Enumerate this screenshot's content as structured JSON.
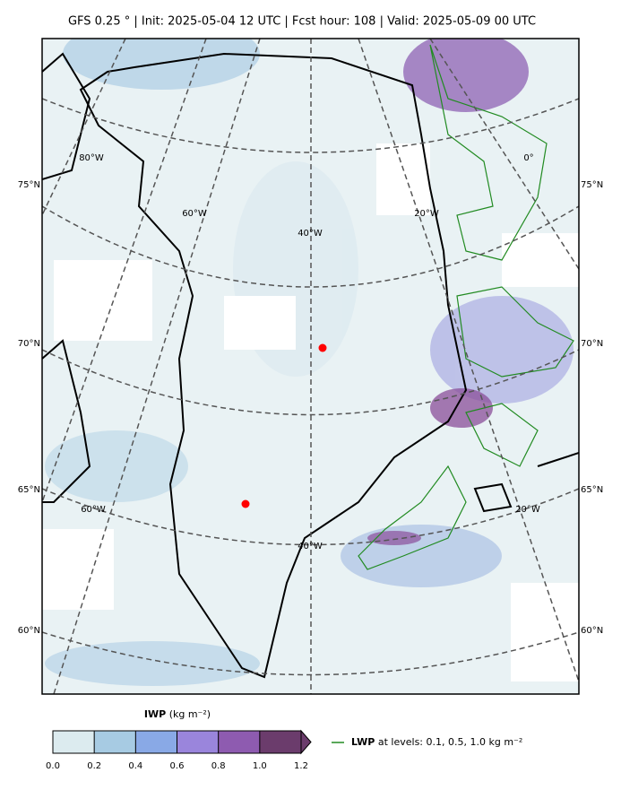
{
  "header": {
    "title": "GFS 0.25 °  |  Init: 2025-05-04 12 UTC  |  Fcst hour: 108  |  Valid: 2025-05-09 00 UTC"
  },
  "map": {
    "lat_labels": [
      "75°N",
      "70°N",
      "65°N",
      "60°N"
    ],
    "lon_labels_upper": [
      "80°W",
      "60°W",
      "40°W",
      "20°W",
      "0°"
    ],
    "lon_labels_lower": [
      "60°W",
      "40°W",
      "20°W"
    ]
  },
  "colorbar": {
    "label_bold": "IWP",
    "label_unit": "(kg m⁻²)",
    "lim": [
      0,
      1.2
    ],
    "ticks": [
      {
        "value": 0,
        "label": "0.0"
      },
      0.2,
      0.4,
      0.6,
      0.8,
      {
        "value": 1,
        "label": "1.0"
      },
      1.2
    ],
    "colors": [
      "#dcebef",
      "#a7cbe3",
      "#89a9e6",
      "#9a85dc",
      "#8e5bb0",
      "#6b3c6c"
    ]
  },
  "legend": {
    "label_bold": "LWP",
    "label": "at levels: 0.1, 0.5, 1.0  kg m⁻²",
    "color": "#228b22"
  }
}
